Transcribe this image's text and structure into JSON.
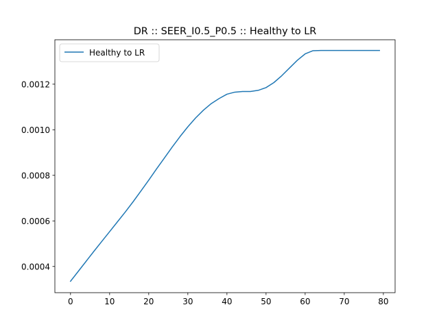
{
  "chart_data": {
    "type": "line",
    "title": "DR :: SEER_I0.5_P0.5 ::  Healthy to LR",
    "xlabel": "",
    "ylabel": "",
    "xlim": [
      -4,
      83
    ],
    "ylim": [
      0.000285,
      0.001395
    ],
    "xticks": [
      0,
      10,
      20,
      30,
      40,
      50,
      60,
      70,
      80
    ],
    "xtick_labels": [
      "0",
      "10",
      "20",
      "30",
      "40",
      "50",
      "60",
      "70",
      "80"
    ],
    "yticks": [
      0.0004,
      0.0006,
      0.0008,
      0.001,
      0.0012
    ],
    "ytick_labels": [
      "0.0004",
      "0.0006",
      "0.0008",
      "0.0010",
      "0.0012"
    ],
    "grid": false,
    "legend_position": "top-left",
    "series": [
      {
        "name": "Healthy to LR",
        "color": "#1f77b4",
        "x": [
          0,
          2,
          4,
          6,
          8,
          10,
          12,
          14,
          16,
          18,
          20,
          22,
          24,
          26,
          28,
          30,
          32,
          34,
          36,
          38,
          40,
          42,
          44,
          46,
          48,
          50,
          52,
          54,
          56,
          58,
          60,
          62,
          64,
          66,
          68,
          70,
          72,
          74,
          76,
          78,
          79
        ],
        "y": [
          0.000335,
          0.000379,
          0.000423,
          0.000467,
          0.00051,
          0.000553,
          0.000596,
          0.000639,
          0.000684,
          0.000731,
          0.000779,
          0.000828,
          0.000876,
          0.000924,
          0.00097,
          0.001013,
          0.001052,
          0.001086,
          0.001115,
          0.001137,
          0.001156,
          0.001165,
          0.001168,
          0.001168,
          0.001173,
          0.001185,
          0.001207,
          0.001237,
          0.001271,
          0.001305,
          0.001333,
          0.001347,
          0.001348,
          0.001348,
          0.001348,
          0.001348,
          0.001348,
          0.001348,
          0.001348,
          0.001348,
          0.001348
        ]
      }
    ]
  }
}
